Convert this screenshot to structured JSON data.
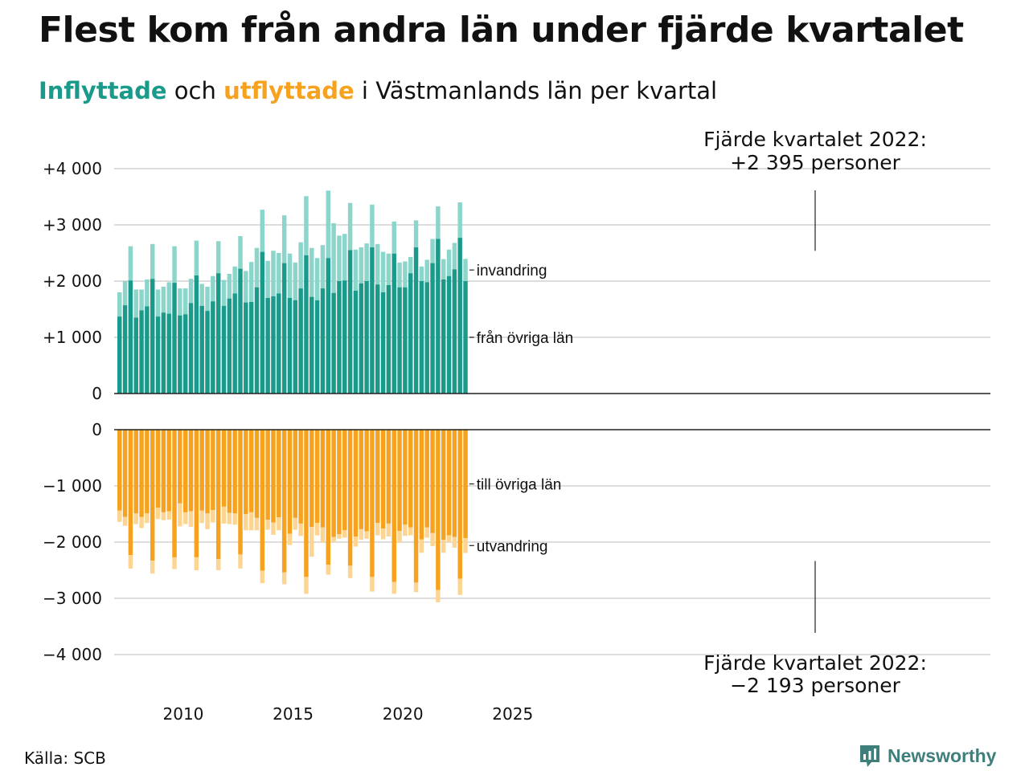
{
  "title": "Flest kom från andra län under fjärde kvartalet",
  "subtitle": {
    "in_label": "Inflyttade",
    "mid": " och ",
    "out_label": "utflyttade",
    "rest": " i Västmanlands län per kvartal"
  },
  "source": "Källa: SCB",
  "brand": "Newsworthy",
  "colors": {
    "in_other": "#1a9a8a",
    "in_immigration": "#8cd5cb",
    "out_other": "#f6a21e",
    "out_emigration": "#fcd593",
    "grid": "#dddddd",
    "axis": "#222222"
  },
  "chart_data": {
    "type": "bar",
    "stacked": true,
    "x_start": "2007 Q1",
    "x_end": "2022 Q4",
    "x_ticks": [
      "2010",
      "2015",
      "2020",
      "2025"
    ],
    "y_ticks_top": [
      "+4 000",
      "+3 000",
      "+2 000",
      "+1 000",
      "0"
    ],
    "y_ticks_bottom": [
      "0",
      "−1 000",
      "−2 000",
      "−3 000",
      "−4 000"
    ],
    "ylim_top": [
      0,
      4000
    ],
    "ylim_bottom": [
      -4000,
      0
    ],
    "series_labels": {
      "in_immigration": "invandring",
      "in_other": "från övriga län",
      "out_other": "till övriga län",
      "out_emigration": "utvandring"
    },
    "in_total": [
      1800,
      2000,
      2620,
      1850,
      1850,
      2030,
      2660,
      1850,
      1900,
      1980,
      2620,
      1870,
      1870,
      2040,
      2720,
      1950,
      1900,
      2090,
      2710,
      2020,
      2130,
      2260,
      2800,
      2180,
      2340,
      2590,
      3270,
      2360,
      2540,
      2500,
      3170,
      2490,
      2330,
      2690,
      3510,
      2590,
      2410,
      2640,
      3610,
      3030,
      2810,
      2840,
      3390,
      2560,
      2600,
      2670,
      3360,
      2660,
      2520,
      2490,
      3060,
      2330,
      2350,
      2430,
      3080,
      2260,
      2380,
      2750,
      3330,
      2390,
      2560,
      2680,
      3400,
      2395
    ],
    "in_other": [
      1370,
      1570,
      2010,
      1350,
      1480,
      1550,
      2040,
      1370,
      1440,
      1420,
      1970,
      1390,
      1410,
      1610,
      2100,
      1560,
      1470,
      1640,
      2140,
      1560,
      1690,
      1780,
      2220,
      1620,
      1630,
      1890,
      2520,
      1700,
      1730,
      1780,
      2320,
      1700,
      1660,
      1870,
      2460,
      1720,
      1660,
      1870,
      2410,
      1790,
      2000,
      2010,
      2550,
      1830,
      1960,
      2000,
      2600,
      1940,
      1800,
      1930,
      2490,
      1890,
      1890,
      2140,
      2600,
      2000,
      1980,
      2320,
      2750,
      2030,
      2090,
      2210,
      2770,
      2000
    ],
    "out_total": [
      -1640,
      -1710,
      -2470,
      -1680,
      -1750,
      -1660,
      -2560,
      -1590,
      -1610,
      -1600,
      -2480,
      -1720,
      -1680,
      -1730,
      -2500,
      -1660,
      -1770,
      -1650,
      -2500,
      -1670,
      -1680,
      -1690,
      -2470,
      -1790,
      -1790,
      -1790,
      -2730,
      -1780,
      -1870,
      -1790,
      -2750,
      -2050,
      -1780,
      -1890,
      -2920,
      -2260,
      -1880,
      -2010,
      -2580,
      -2000,
      -1940,
      -1920,
      -2640,
      -2080,
      -1960,
      -1940,
      -2880,
      -1880,
      -1950,
      -1900,
      -2920,
      -2010,
      -1890,
      -1880,
      -2890,
      -2190,
      -1920,
      -2070,
      -3070,
      -2190,
      -2000,
      -2100,
      -2940,
      -2193
    ],
    "out_other": [
      -1440,
      -1550,
      -2230,
      -1490,
      -1550,
      -1490,
      -2330,
      -1390,
      -1470,
      -1450,
      -2270,
      -1310,
      -1470,
      -1450,
      -2270,
      -1440,
      -1490,
      -1430,
      -2300,
      -1370,
      -1480,
      -1490,
      -2220,
      -1500,
      -1470,
      -1570,
      -2510,
      -1600,
      -1650,
      -1560,
      -2540,
      -1850,
      -1570,
      -1670,
      -2620,
      -1730,
      -1660,
      -1740,
      -2400,
      -1910,
      -1860,
      -1790,
      -2420,
      -1900,
      -1770,
      -1810,
      -2620,
      -1660,
      -1760,
      -1670,
      -2710,
      -1800,
      -1690,
      -1740,
      -2720,
      -1950,
      -1740,
      -1840,
      -2850,
      -1960,
      -1880,
      -1910,
      -2650,
      -1930
    ],
    "annotation_top": {
      "line1": "Fjärde kvartalet 2022:",
      "line2": "+2 395 personer"
    },
    "annotation_bottom": {
      "line1": "Fjärde kvartalet 2022:",
      "line2": "−2 193 personer"
    }
  }
}
